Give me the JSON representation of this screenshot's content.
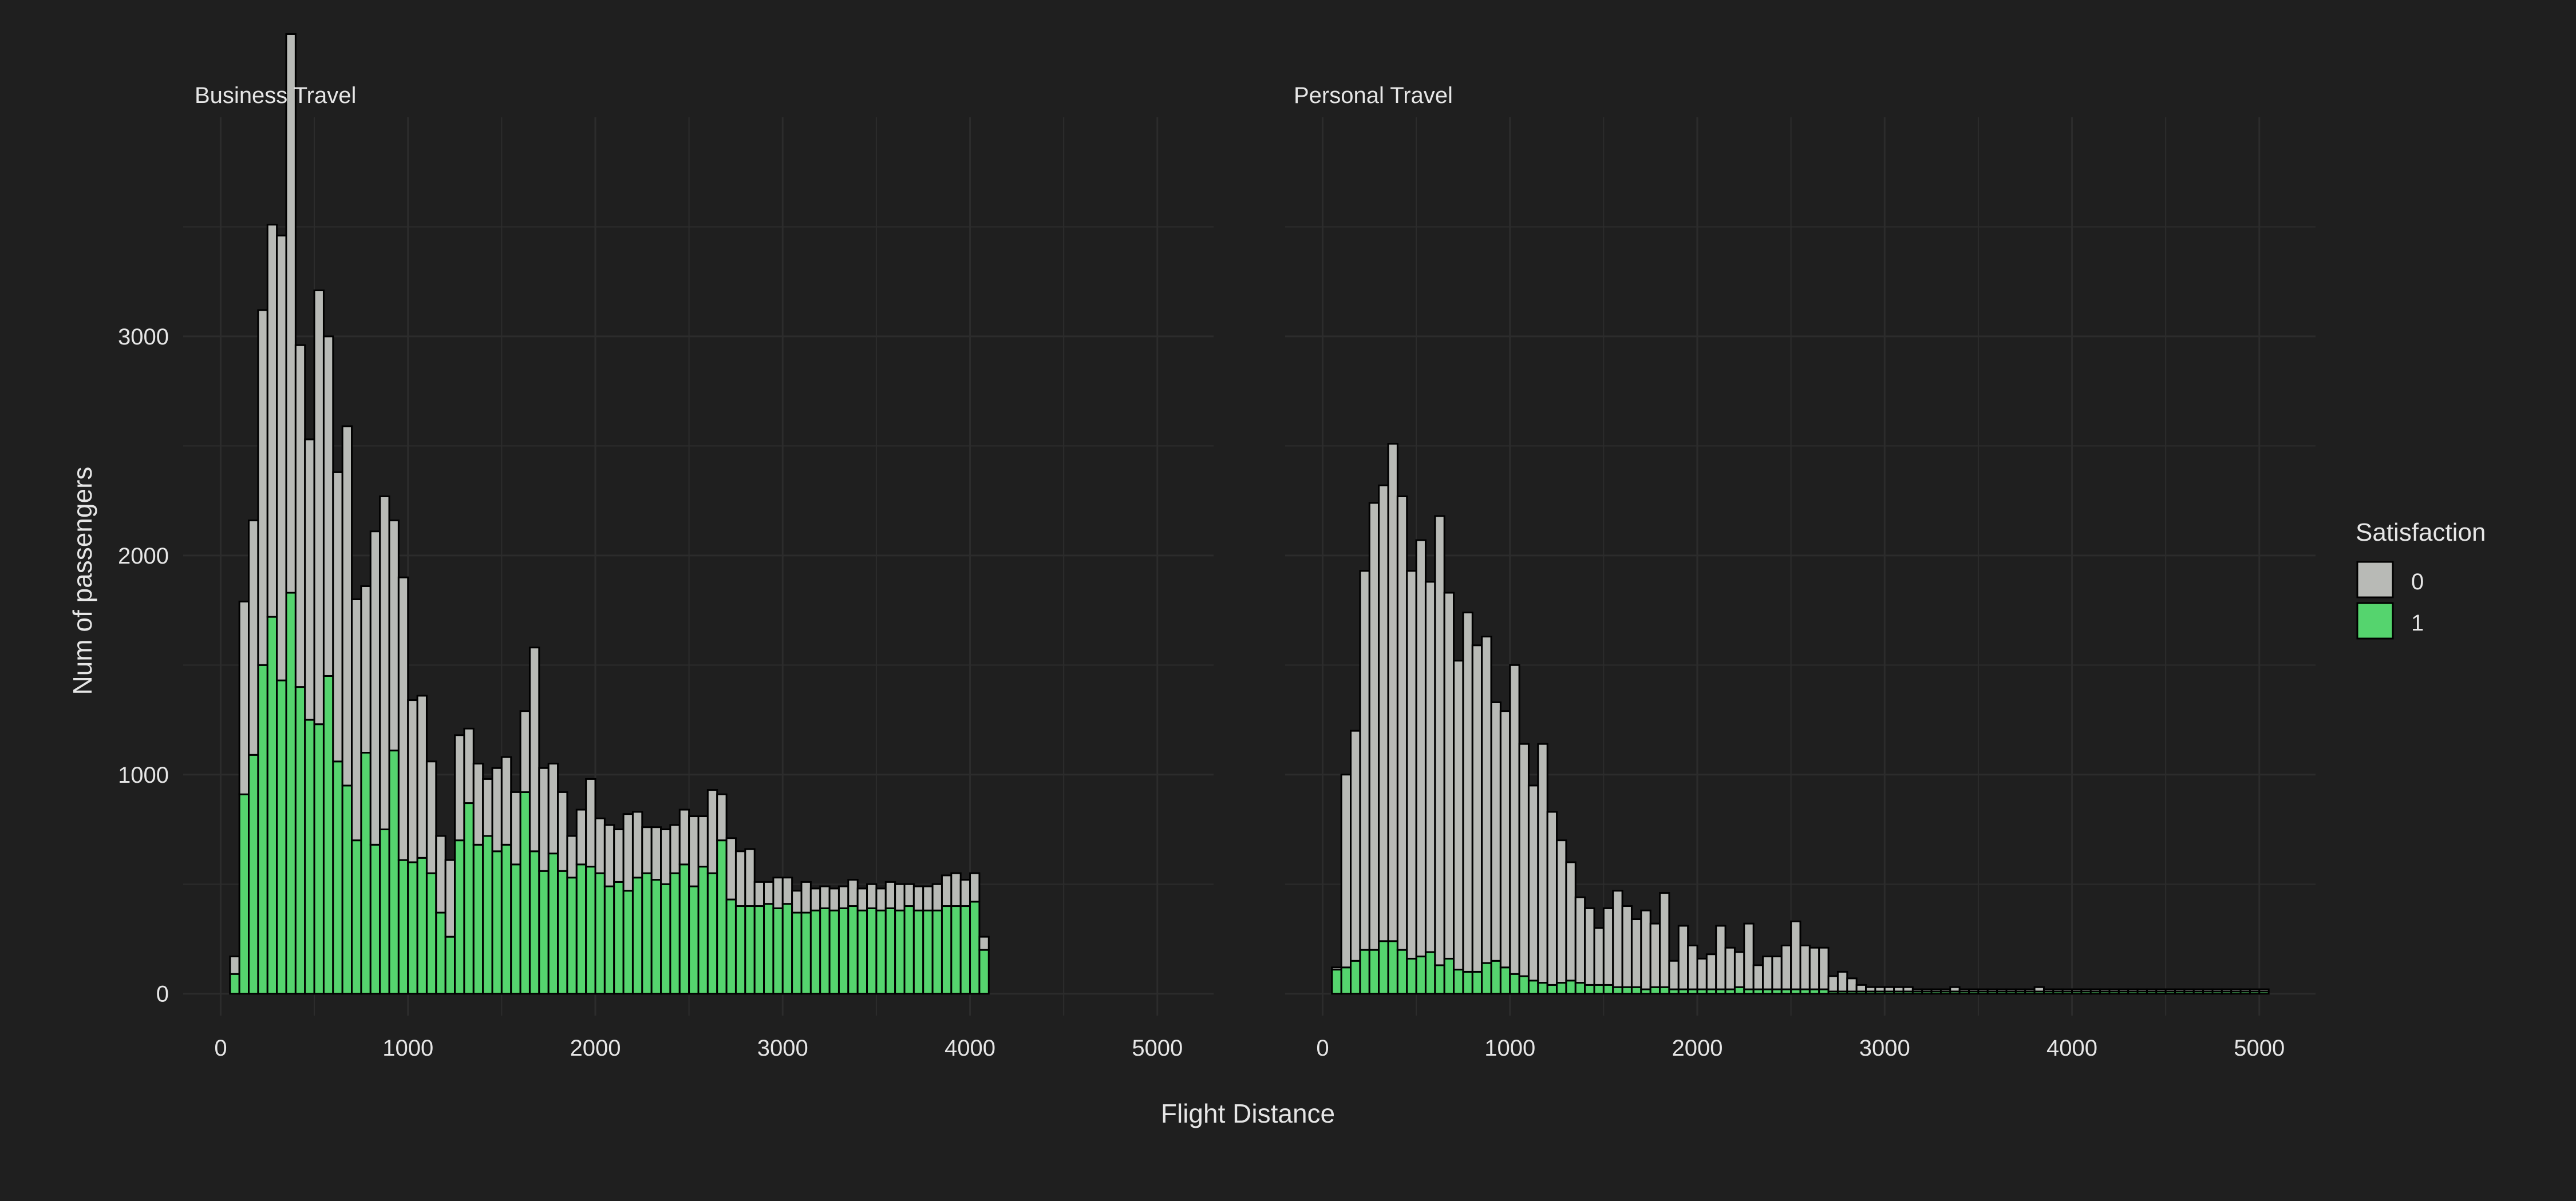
{
  "chart_data": {
    "type": "bar",
    "stacked": true,
    "xlabel": "Flight Distance",
    "ylabel": "Num of passengers",
    "legend": {
      "title": "Satisfaction",
      "placement": "right",
      "entries": [
        {
          "label": "0",
          "color": "#b8bab6"
        },
        {
          "label": "1",
          "color": "#55d46e"
        }
      ]
    },
    "colors": {
      "background": "#1f1f1f",
      "grid": "#2c2c2c",
      "text": "#e6e6e6",
      "bar_outline": "#000000",
      "satisfied_0": "#b8bab6",
      "satisfied_1": "#55d46e"
    },
    "grid": true,
    "bin_width": 50,
    "xlim": [
      -200,
      5300
    ],
    "ylim": [
      -100,
      4000
    ],
    "x_ticks": [
      0,
      1000,
      2000,
      3000,
      4000,
      5000
    ],
    "y_ticks": [
      0,
      1000,
      2000,
      3000
    ],
    "panels": [
      {
        "title": "Business Travel",
        "series": [
          {
            "name": "0",
            "values": [
              80,
              880,
              1070,
              1620,
              1790,
              2030,
              2550,
              1560,
              1280,
              1980,
              1550,
              1320,
              1640,
              1100,
              760,
              1430,
              1520,
              1050,
              1290,
              740,
              740,
              510,
              350,
              350,
              480,
              340,
              370,
              260,
              380,
              400,
              330,
              370,
              930,
              470,
              410,
              360,
              190,
              250,
              400,
              250,
              280,
              240,
              350,
              300,
              210,
              240,
              250,
              220,
              250,
              320,
              230,
              380,
              210,
              280,
              250,
              260,
              110,
              100,
              140,
              120,
              100,
              140,
              100,
              100,
              100,
              100,
              120,
              100,
              110,
              100,
              120,
              120,
              100,
              110,
              110,
              120,
              140,
              150,
              120,
              130,
              60
            ]
          },
          {
            "name": "1",
            "values": [
              90,
              910,
              1090,
              1500,
              1720,
              1430,
              1830,
              1400,
              1250,
              1230,
              1450,
              1060,
              950,
              700,
              1100,
              680,
              750,
              1110,
              610,
              600,
              620,
              550,
              370,
              260,
              700,
              870,
              680,
              720,
              650,
              680,
              590,
              920,
              650,
              560,
              640,
              560,
              530,
              590,
              580,
              550,
              490,
              510,
              470,
              530,
              550,
              520,
              500,
              550,
              590,
              490,
              580,
              550,
              700,
              430,
              400,
              400,
              400,
              410,
              390,
              410,
              370,
              370,
              380,
              390,
              380,
              390,
              400,
              380,
              390,
              380,
              390,
              380,
              400,
              380,
              380,
              380,
              400,
              400,
              400,
              420,
              200
            ]
          }
        ],
        "x_start": 50
      },
      {
        "title": "Personal Travel",
        "series": [
          {
            "name": "0",
            "values": [
              10,
              880,
              1050,
              1730,
              2040,
              2080,
              2270,
              2070,
              1770,
              1900,
              1690,
              2050,
              1670,
              1410,
              1640,
              1490,
              1490,
              1180,
              1170,
              1410,
              1060,
              890,
              1090,
              790,
              650,
              540,
              390,
              350,
              260,
              350,
              440,
              370,
              310,
              360,
              290,
              430,
              130,
              290,
              200,
              140,
              160,
              290,
              190,
              160,
              300,
              110,
              150,
              150,
              200,
              310,
              200,
              190,
              190,
              70,
              90,
              60,
              30,
              20,
              20,
              20,
              20,
              20,
              10,
              10,
              10,
              10,
              20,
              10,
              10,
              10,
              10,
              10,
              10,
              10,
              10,
              20,
              10,
              10,
              10,
              10,
              10,
              10,
              10,
              10,
              10,
              10,
              10,
              10,
              10,
              10,
              10,
              10,
              10,
              10,
              10,
              10,
              10,
              10,
              10,
              10
            ]
          },
          {
            "name": "1",
            "values": [
              110,
              120,
              150,
              200,
              200,
              240,
              240,
              200,
              160,
              170,
              190,
              130,
              160,
              110,
              100,
              100,
              140,
              150,
              120,
              90,
              80,
              60,
              50,
              40,
              50,
              60,
              50,
              40,
              40,
              40,
              30,
              30,
              30,
              20,
              30,
              30,
              20,
              20,
              20,
              20,
              20,
              20,
              20,
              30,
              20,
              20,
              20,
              20,
              20,
              20,
              20,
              20,
              20,
              10,
              10,
              10,
              10,
              10,
              10,
              10,
              10,
              10,
              10,
              10,
              10,
              10,
              10,
              10,
              10,
              10,
              10,
              10,
              10,
              10,
              10,
              10,
              10,
              10,
              10,
              10,
              10,
              10,
              10,
              10,
              10,
              10,
              10,
              10,
              10,
              10,
              10,
              10,
              10,
              10,
              10,
              10,
              10,
              10,
              10,
              10
            ]
          }
        ],
        "x_start": 50
      }
    ]
  }
}
